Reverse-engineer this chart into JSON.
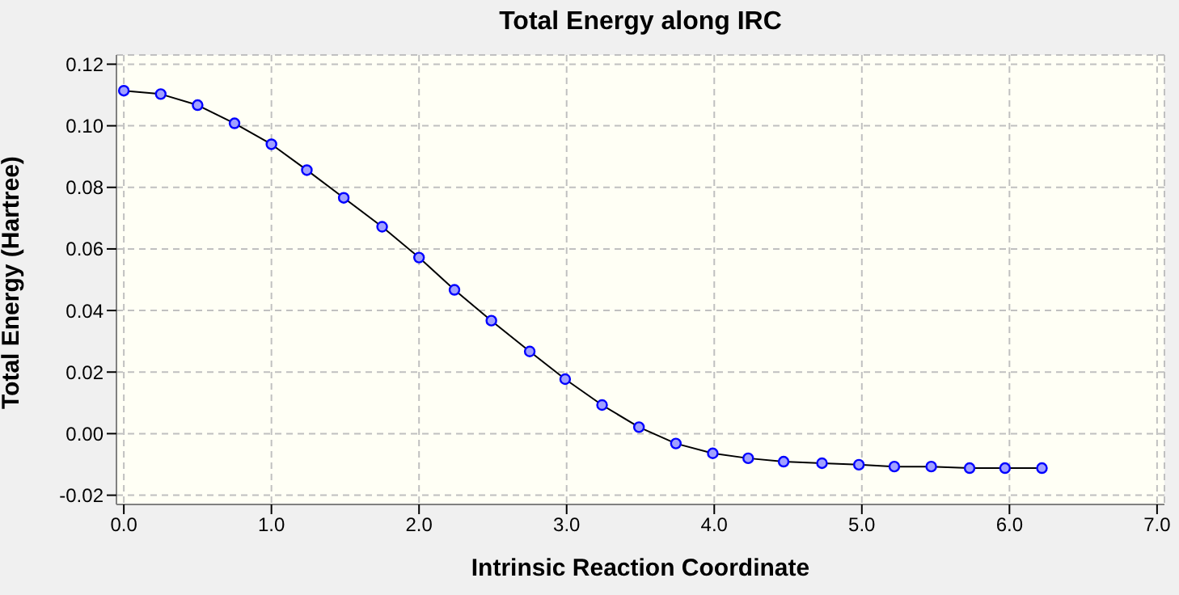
{
  "chart_data": {
    "type": "line",
    "title": "Total Energy along IRC",
    "xlabel": "Intrinsic Reaction Coordinate",
    "ylabel": "Total Energy (Hartree)",
    "x": [
      0,
      0.25,
      0.5,
      0.75,
      1.0,
      1.24,
      1.49,
      1.75,
      2.0,
      2.24,
      2.49,
      2.75,
      2.99,
      3.24,
      3.49,
      3.74,
      3.99,
      4.23,
      4.47,
      4.73,
      4.98,
      5.22,
      5.47,
      5.73,
      5.97,
      6.22
    ],
    "series": [
      {
        "color": "#000000",
        "values": [
          0.1114,
          0.1103,
          0.1067,
          0.1008,
          0.094,
          0.0856,
          0.0766,
          0.0672,
          0.0572,
          0.0467,
          0.0367,
          0.0267,
          0.0177,
          0.0093,
          0.0021,
          -0.0032,
          -0.0064,
          -0.008,
          -0.0091,
          -0.0096,
          -0.0101,
          -0.0107,
          -0.0107,
          -0.0112,
          -0.0112,
          -0.0112
        ]
      }
    ],
    "xlim": [
      -0.05,
      7.05
    ],
    "ylim": [
      -0.023,
      0.123
    ],
    "xticks": [
      {
        "value": 0,
        "label": "0.0"
      },
      {
        "value": 1,
        "label": "1.0"
      },
      {
        "value": 2,
        "label": "2.0"
      },
      {
        "value": 3,
        "label": "3.0"
      },
      {
        "value": 4,
        "label": "4.0"
      },
      {
        "value": 5,
        "label": "5.0"
      },
      {
        "value": 6,
        "label": "6.0"
      },
      {
        "value": 7,
        "label": "7.0"
      }
    ],
    "yticks": [
      {
        "value": -0.02,
        "label": "-0.02"
      },
      {
        "value": 0,
        "label": "0.00"
      },
      {
        "value": 0.02,
        "label": "0.02"
      },
      {
        "value": 0.04,
        "label": "0.04"
      },
      {
        "value": 0.06,
        "label": "0.06"
      },
      {
        "value": 0.08,
        "label": "0.08"
      },
      {
        "value": 0.1,
        "label": "0.10"
      },
      {
        "value": 0.12,
        "label": "0.12"
      }
    ],
    "grid": true,
    "marker": "circle",
    "line_style": "solid",
    "legend": false
  }
}
